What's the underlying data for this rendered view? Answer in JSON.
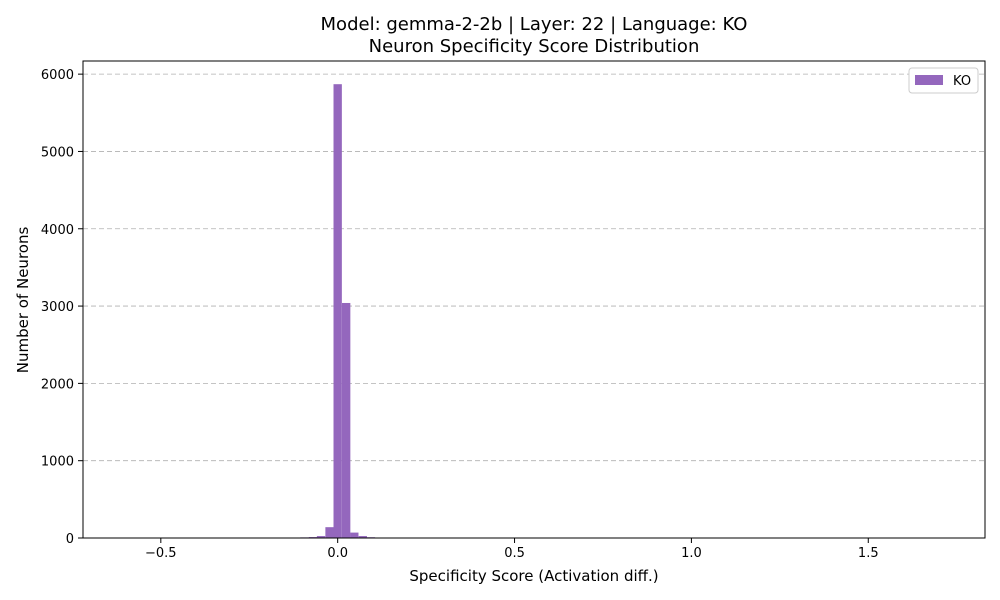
{
  "chart_data": {
    "type": "bar",
    "title": "Model: gemma-2-2b | Layer: 22 | Language: KO",
    "subtitle": "Neuron Specificity Score Distribution",
    "xlabel": "Specificity Score (Activation diff.)",
    "ylabel": "Number of Neurons",
    "xlim": [
      -0.72,
      1.83
    ],
    "ylim": [
      0,
      6170
    ],
    "x_ticks": [
      -0.5,
      0.0,
      0.5,
      1.0,
      1.5
    ],
    "x_tick_labels": [
      "−0.5",
      "0.0",
      "0.5",
      "1.0",
      "1.5"
    ],
    "y_ticks": [
      0,
      1000,
      2000,
      3000,
      4000,
      5000,
      6000
    ],
    "y_tick_labels": [
      "0",
      "1000",
      "2000",
      "3000",
      "4000",
      "5000",
      "6000"
    ],
    "grid": "y-dashed",
    "legend_position": "top-right",
    "color": "#9467bd",
    "series": [
      {
        "name": "KO",
        "bin_width": 0.0236,
        "bins": [
          {
            "x": -0.141,
            "value": 5
          },
          {
            "x": -0.117,
            "value": 6
          },
          {
            "x": -0.094,
            "value": 8
          },
          {
            "x": -0.07,
            "value": 12
          },
          {
            "x": -0.047,
            "value": 25
          },
          {
            "x": -0.023,
            "value": 140
          },
          {
            "x": 0.0,
            "value": 5870
          },
          {
            "x": 0.024,
            "value": 3040
          },
          {
            "x": 0.047,
            "value": 70
          },
          {
            "x": 0.071,
            "value": 25
          },
          {
            "x": 0.094,
            "value": 10
          },
          {
            "x": 0.118,
            "value": 4
          },
          {
            "x": 0.2,
            "value": 6
          }
        ]
      }
    ]
  }
}
